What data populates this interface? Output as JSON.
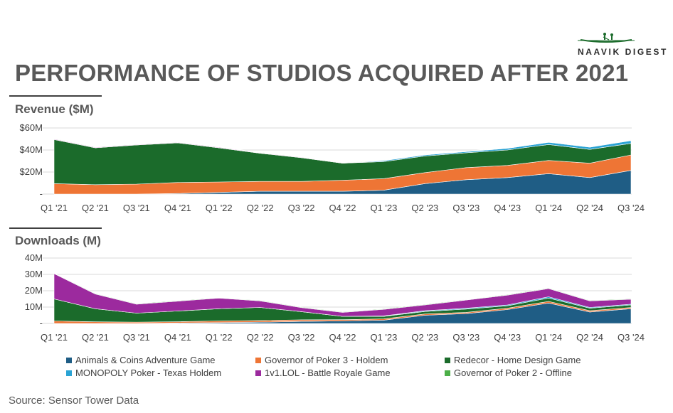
{
  "brand": {
    "name": "NAAVIK DIGEST",
    "icon": "boat-icon"
  },
  "title": "PERFORMANCE OF STUDIOS ACQUIRED AFTER 2021",
  "source": "Source: Sensor Tower Data",
  "colors": {
    "Animals & Coins Adventure Game": "#1f5d85",
    "Governor of Poker 3 - Holdem": "#ee7535",
    "Redecor - Home Design Game": "#1b6b2b",
    "MONOPOLY Poker - Texas Holdem": "#2aa3d4",
    "1v1.LOL - Battle Royale Game": "#9c2a9e",
    "Governor of Poker 2 - Offline": "#4caf48"
  },
  "legend": [
    "Animals & Coins Adventure Game",
    "Governor of Poker 3 - Holdem",
    "Redecor - Home Design Game",
    "MONOPOLY Poker - Texas Holdem",
    "1v1.LOL - Battle Royale Game",
    "Governor of Poker 2 - Offline"
  ],
  "chart_data": [
    {
      "type": "area",
      "stacked": true,
      "title": "Revenue ($M)",
      "categories": [
        "Q1 '21",
        "Q2 '21",
        "Q3 '21",
        "Q4 '21",
        "Q1 '22",
        "Q2 '22",
        "Q3 '22",
        "Q4 '22",
        "Q1 '23",
        "Q2 '23",
        "Q3 '23",
        "Q4 '23",
        "Q1 '24",
        "Q2 '24",
        "Q3 '24"
      ],
      "ylim": [
        0,
        60
      ],
      "yticks": [
        0,
        20,
        40,
        60
      ],
      "ytick_labels": [
        "-",
        "$20M",
        "$40M",
        "$60M"
      ],
      "grid": true,
      "series": [
        {
          "name": "Animals & Coins Adventure Game",
          "values": [
            0,
            0,
            0,
            0.5,
            1.5,
            2.5,
            2.5,
            2.5,
            3.5,
            9.5,
            13,
            15,
            18.5,
            15,
            21.5
          ]
        },
        {
          "name": "Governor of Poker 3 - Holdem",
          "values": [
            9.5,
            8.5,
            9,
            10,
            9.5,
            9,
            9,
            10,
            10.5,
            10,
            11,
            11,
            12,
            13,
            14
          ]
        },
        {
          "name": "Redecor - Home Design Game",
          "values": [
            40,
            33.5,
            35.5,
            36,
            31,
            25.5,
            21.5,
            15.5,
            15.5,
            15,
            13.5,
            14,
            14.5,
            12.5,
            10.5
          ]
        },
        {
          "name": "MONOPOLY Poker - Texas Holdem",
          "values": [
            0,
            0,
            0,
            0,
            0,
            0,
            0,
            0,
            0.8,
            1,
            1,
            1.5,
            2,
            2,
            2.5
          ]
        },
        {
          "name": "1v1.LOL - Battle Royale Game",
          "values": [
            0.5,
            0.5,
            0.5,
            0.5,
            0.5,
            0.5,
            0.5,
            0.3,
            0.3,
            0.3,
            0.3,
            0.3,
            0.3,
            0.3,
            0.3
          ]
        },
        {
          "name": "Governor of Poker 2 - Offline",
          "values": [
            0.3,
            0.3,
            0.3,
            0.3,
            0.3,
            0.3,
            0.3,
            0.3,
            0.3,
            0.3,
            0.3,
            0.3,
            0.3,
            0.3,
            0.3
          ]
        }
      ]
    },
    {
      "type": "area",
      "stacked": true,
      "title": "Downloads (M)",
      "categories": [
        "Q1 '21",
        "Q2 '21",
        "Q3 '21",
        "Q4 '21",
        "Q1 '22",
        "Q2 '22",
        "Q3 '22",
        "Q4 '22",
        "Q1 '23",
        "Q2 '23",
        "Q3 '23",
        "Q4 '23",
        "Q1 '24",
        "Q2 '24",
        "Q3 '24"
      ],
      "ylim": [
        0,
        40
      ],
      "yticks": [
        0,
        10,
        20,
        30,
        40
      ],
      "ytick_labels": [
        "-",
        "10M",
        "20M",
        "30M",
        "40M"
      ],
      "grid": true,
      "series": [
        {
          "name": "Animals & Coins Adventure Game",
          "values": [
            0,
            0,
            0,
            0.3,
            0.5,
            0.8,
            1.2,
            1.5,
            2,
            5,
            6,
            8.5,
            12.5,
            7,
            9
          ]
        },
        {
          "name": "Governor of Poker 3 - Holdem",
          "values": [
            1.5,
            1,
            0.8,
            0.8,
            1,
            1,
            1,
            0.8,
            0.8,
            0.8,
            0.8,
            0.8,
            1,
            0.8,
            0.8
          ]
        },
        {
          "name": "Redecor - Home Design Game",
          "values": [
            13.5,
            8,
            5.5,
            6.5,
            7.5,
            8,
            5,
            2,
            1.5,
            1.5,
            2,
            1.5,
            2,
            1.5,
            1.5
          ]
        },
        {
          "name": "MONOPOLY Poker - Texas Holdem",
          "values": [
            0,
            0,
            0,
            0,
            0,
            0,
            0,
            0,
            0.3,
            0.5,
            0.5,
            0.5,
            0.8,
            0.5,
            0.5
          ]
        },
        {
          "name": "1v1.LOL - Battle Royale Game",
          "values": [
            15.5,
            9,
            5.5,
            6,
            6.5,
            4,
            2.5,
            2.5,
            4,
            3.5,
            5,
            6,
            5,
            4,
            3
          ]
        },
        {
          "name": "Governor of Poker 2 - Offline",
          "values": [
            0.3,
            0.3,
            0.3,
            0.3,
            0.3,
            0.3,
            0.3,
            0.3,
            0.3,
            0.3,
            0.3,
            0.3,
            0.3,
            0.3,
            0.3
          ]
        }
      ]
    }
  ]
}
